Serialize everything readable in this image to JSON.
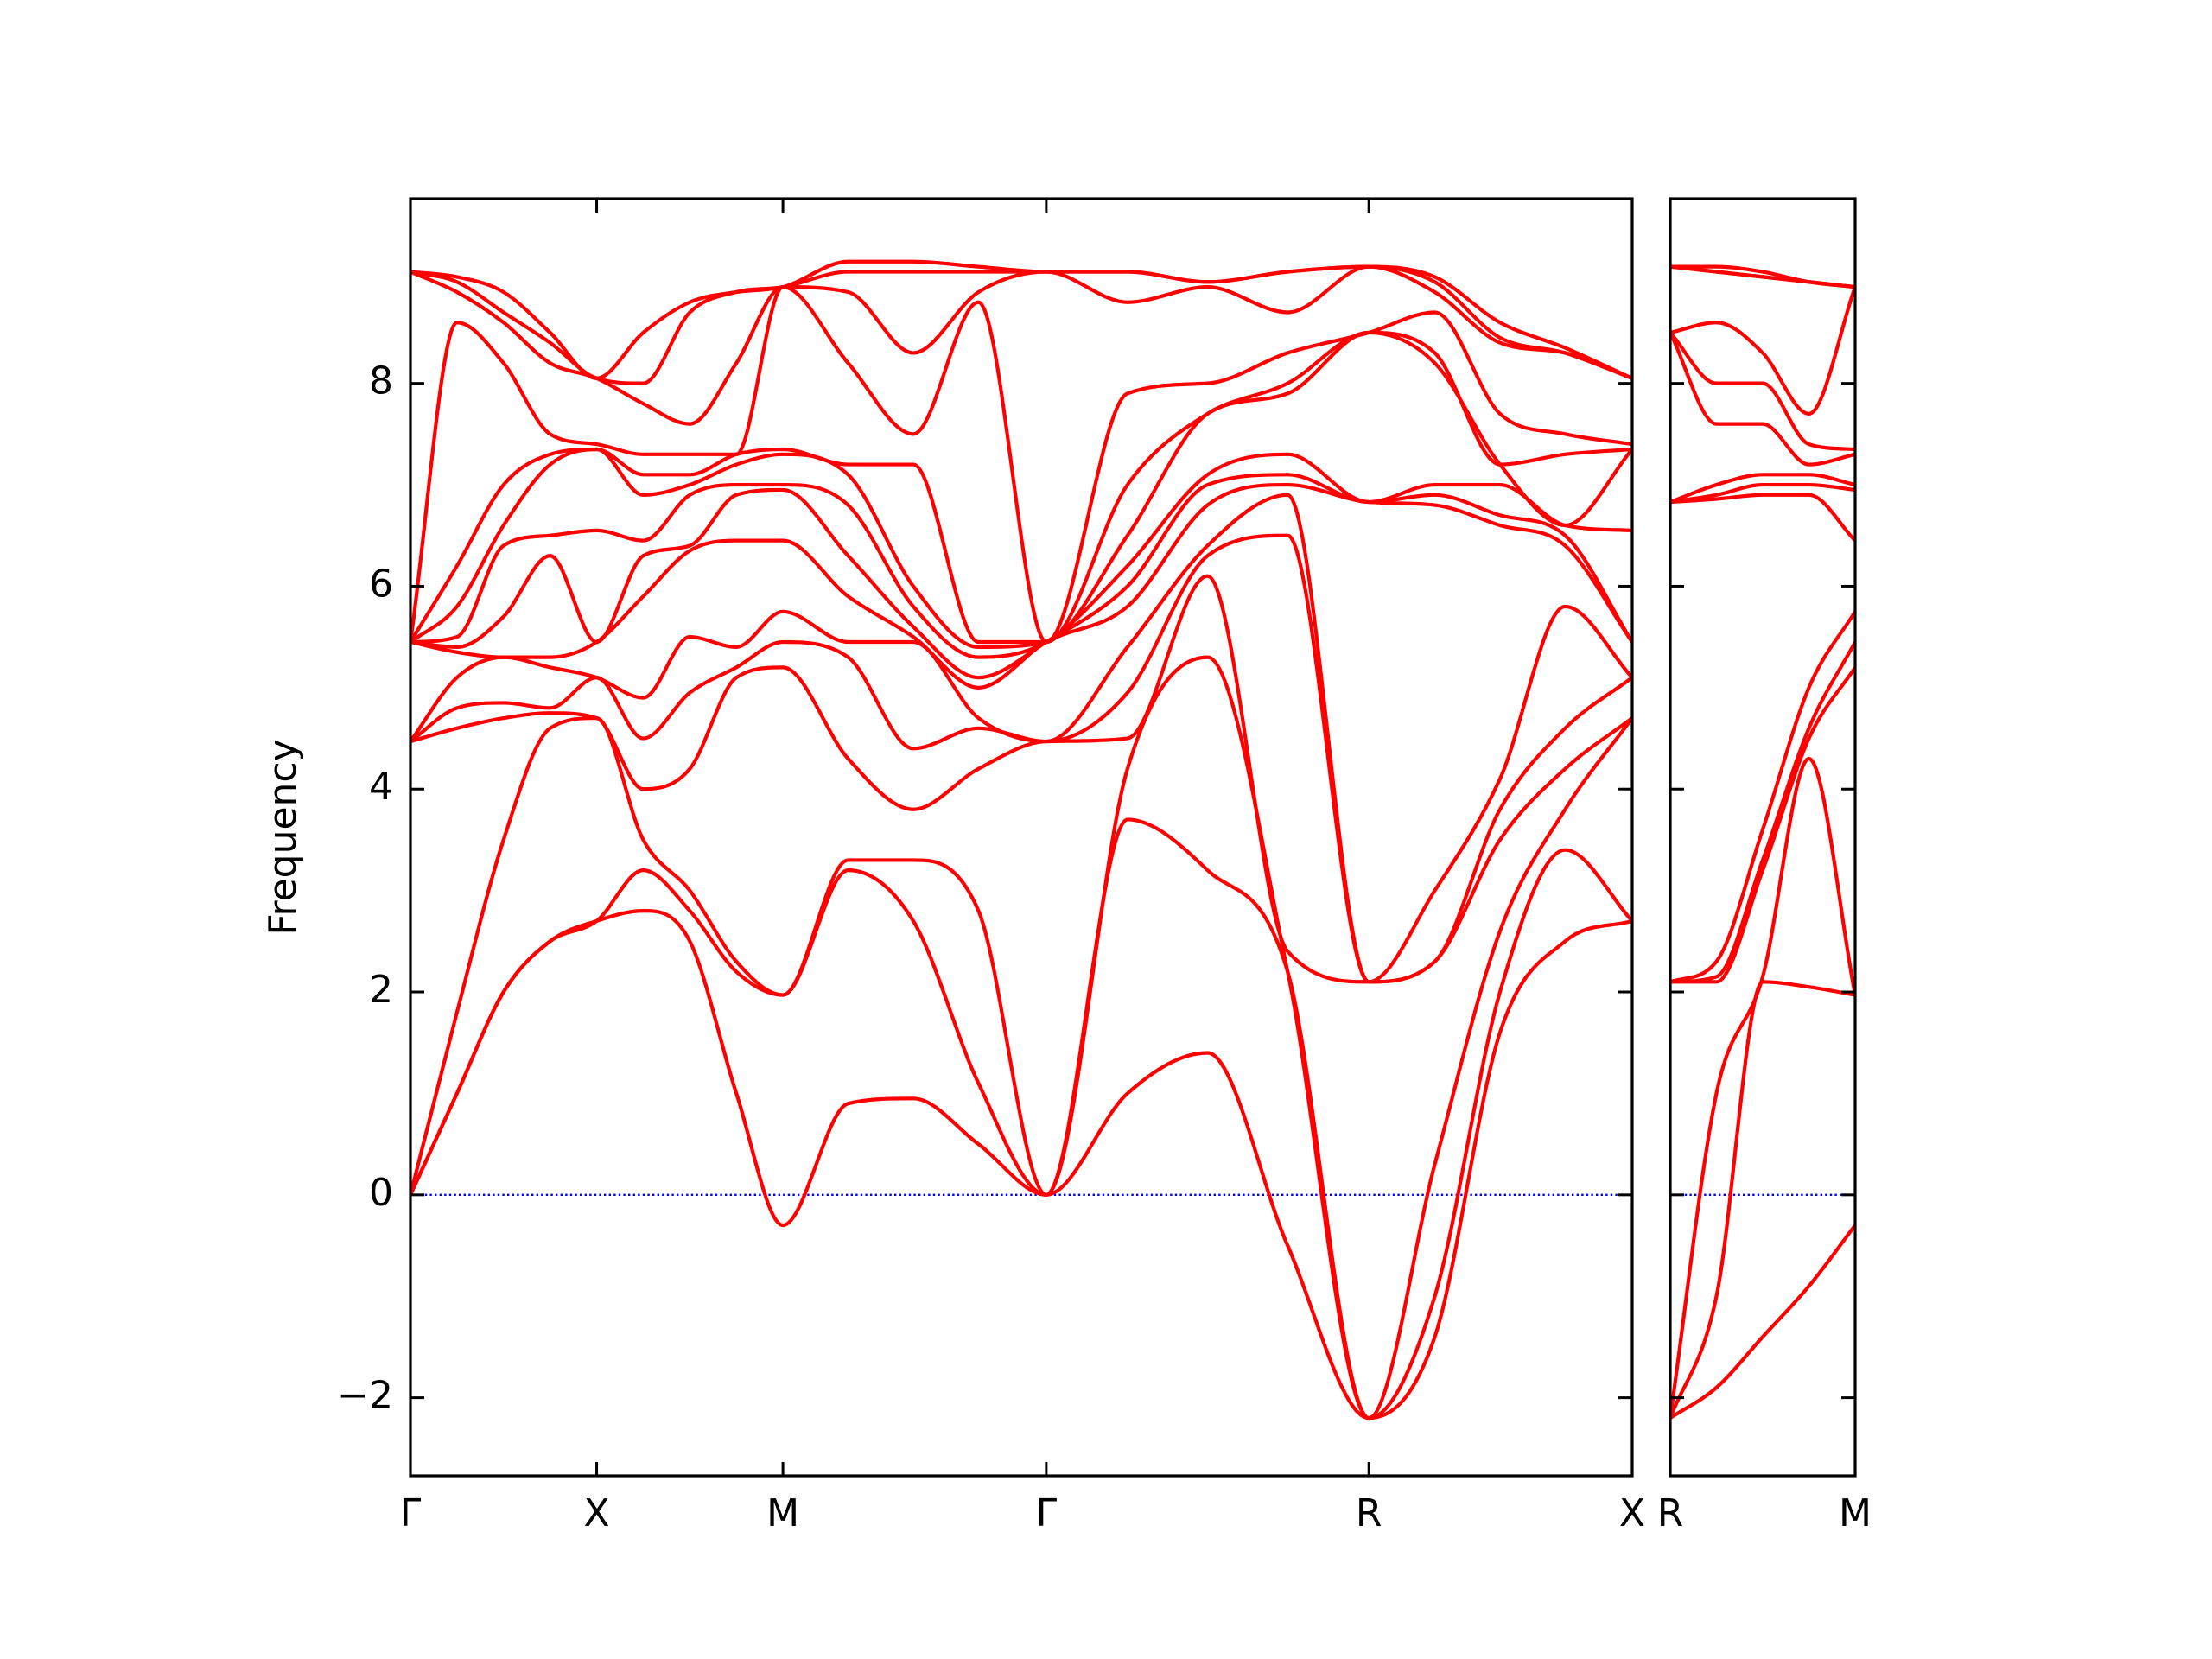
{
  "chart_data": [
    {
      "type": "line",
      "ylabel": "Frequency",
      "x": [
        0,
        0.25,
        0.5,
        0.75,
        1,
        1.25,
        1.5,
        1.75,
        2,
        2.35,
        2.7,
        3.05,
        3.414,
        3.85,
        4.28,
        4.71,
        5.146,
        5.5,
        5.85,
        6.2,
        6.56
      ],
      "xlim": [
        0,
        6.56
      ],
      "xticks": [
        {
          "value": 0,
          "label": "Γ"
        },
        {
          "value": 1,
          "label": "X"
        },
        {
          "value": 2,
          "label": "M"
        },
        {
          "value": 3.414,
          "label": "Γ"
        },
        {
          "value": 5.146,
          "label": "R"
        },
        {
          "value": 6.56,
          "label": "X"
        }
      ],
      "ylim": [
        -2.77,
        9.82
      ],
      "yticks": [
        {
          "value": -2,
          "label": "−2"
        },
        0,
        2,
        4,
        6,
        8
      ],
      "ytick_labels": true,
      "hline": {
        "y": 0,
        "color": "#0000ff",
        "style": "dotted"
      },
      "series": [
        {
          "color": "#ff0000",
          "values": [
            0,
            1.0,
            2.0,
            2.5,
            2.7,
            2.8,
            2.5,
            1.0,
            -0.3,
            0.9,
            0.95,
            0.5,
            0,
            1.0,
            1.4,
            -0.5,
            -2.2,
            -1.4,
            1.6,
            2.5,
            2.7
          ]
        },
        {
          "color": "#ff0000",
          "values": [
            0,
            1.0,
            2.0,
            2.5,
            2.7,
            3.2,
            2.8,
            2.2,
            1.97,
            3.2,
            2.7,
            1.1,
            0,
            3.7,
            3.2,
            2.2,
            -2.2,
            -1.0,
            2.0,
            3.4,
            2.7
          ]
        },
        {
          "color": "#ff0000",
          "values": [
            0,
            1.8,
            3.5,
            4.6,
            4.7,
            3.5,
            3.0,
            2.3,
            1.97,
            3.3,
            3.3,
            2.8,
            0,
            4.2,
            5.3,
            2.2,
            -2.2,
            0.3,
            2.6,
            3.8,
            4.7
          ]
        },
        {
          "color": "#ff0000",
          "values": [
            4.47,
            4.6,
            4.7,
            4.75,
            4.7,
            4.0,
            4.2,
            5.1,
            5.2,
            4.3,
            3.8,
            4.2,
            4.47,
            4.5,
            6.1,
            2.4,
            2.1,
            2.3,
            3.5,
            4.2,
            4.7
          ]
        },
        {
          "color": "#ff0000",
          "values": [
            4.47,
            4.8,
            4.85,
            4.8,
            5.1,
            4.5,
            4.95,
            5.2,
            5.45,
            5.3,
            4.4,
            4.6,
            4.47,
            4.95,
            6.3,
            6.5,
            2.1,
            2.3,
            3.8,
            4.6,
            5.1
          ]
        },
        {
          "color": "#ff0000",
          "values": [
            4.47,
            5.1,
            5.3,
            5.2,
            5.1,
            4.9,
            5.5,
            5.4,
            5.75,
            5.45,
            5.45,
            4.7,
            4.47,
            5.4,
            6.4,
            6.9,
            2.1,
            3.0,
            4.1,
            5.8,
            5.1
          ]
        },
        {
          "color": "#ff0000",
          "values": [
            5.45,
            5.35,
            5.3,
            5.3,
            5.45,
            5.9,
            6.35,
            6.45,
            6.45,
            5.9,
            5.5,
            5.0,
            5.45,
            5.8,
            6.8,
            7.0,
            6.83,
            6.8,
            6.6,
            6.4,
            5.45
          ]
        },
        {
          "color": "#ff0000",
          "values": [
            5.45,
            5.4,
            5.7,
            6.3,
            5.45,
            6.3,
            6.4,
            6.9,
            6.95,
            6.3,
            5.6,
            5.1,
            5.45,
            6.0,
            7.0,
            7.1,
            6.83,
            6.9,
            6.7,
            6.5,
            5.45
          ]
        },
        {
          "color": "#ff0000",
          "values": [
            5.45,
            5.5,
            6.4,
            6.5,
            6.55,
            6.45,
            6.9,
            7.0,
            7.0,
            6.8,
            5.8,
            5.3,
            5.45,
            6.2,
            7.1,
            7.3,
            6.83,
            7.0,
            7.0,
            6.6,
            6.55
          ]
        },
        {
          "color": "#ff0000",
          "values": [
            5.45,
            5.8,
            6.6,
            7.2,
            7.35,
            6.9,
            7.0,
            7.2,
            7.3,
            7.1,
            6.0,
            5.4,
            5.45,
            6.5,
            7.7,
            7.9,
            8.5,
            8.2,
            7.2,
            6.6,
            7.35
          ]
        },
        {
          "color": "#ff0000",
          "values": [
            5.45,
            6.2,
            7.0,
            7.3,
            7.35,
            7.1,
            7.1,
            7.3,
            7.35,
            7.2,
            7.2,
            5.45,
            5.45,
            7.0,
            7.7,
            8.0,
            8.5,
            8.3,
            7.2,
            7.3,
            7.35
          ]
        },
        {
          "color": "#ff0000",
          "values": [
            5.45,
            8.6,
            8.2,
            7.5,
            7.4,
            7.3,
            7.3,
            7.3,
            8.95,
            8.2,
            7.5,
            8.8,
            5.45,
            7.9,
            8.0,
            8.3,
            8.5,
            8.7,
            7.7,
            7.5,
            7.4
          ]
        },
        {
          "color": "#ff0000",
          "values": [
            9.1,
            8.9,
            8.6,
            8.2,
            8.05,
            7.8,
            7.6,
            8.2,
            8.95,
            8.9,
            8.3,
            8.9,
            9.1,
            8.8,
            8.95,
            8.7,
            9.15,
            8.9,
            8.4,
            8.3,
            8.05
          ]
        },
        {
          "color": "#ff0000",
          "values": [
            9.1,
            9.0,
            8.7,
            8.4,
            8.05,
            8.0,
            8.7,
            8.9,
            8.95,
            9.1,
            9.1,
            9.1,
            9.1,
            9.1,
            9.0,
            9.1,
            9.15,
            9.0,
            8.45,
            8.3,
            8.05
          ]
        },
        {
          "color": "#ff0000",
          "values": [
            9.1,
            9.05,
            8.9,
            8.5,
            8.05,
            8.5,
            8.8,
            8.9,
            8.95,
            9.2,
            9.2,
            9.15,
            9.1,
            9.1,
            9.0,
            9.1,
            9.15,
            9.05,
            8.6,
            8.35,
            8.05
          ]
        }
      ]
    },
    {
      "type": "line",
      "x": [
        0,
        0.25,
        0.5,
        0.75,
        1
      ],
      "xlim": [
        0,
        1
      ],
      "xticks": [
        {
          "value": 0,
          "label": "R"
        },
        {
          "value": 1,
          "label": "M"
        }
      ],
      "ylim": [
        -2.77,
        9.82
      ],
      "yticks": [
        -2,
        0,
        2,
        4,
        6,
        8
      ],
      "ytick_labels": false,
      "hline": {
        "y": 0,
        "color": "#0000ff",
        "style": "dotted"
      },
      "series": [
        {
          "color": "#ff0000",
          "values": [
            -2.2,
            -1.9,
            -1.4,
            -0.9,
            -0.3
          ]
        },
        {
          "color": "#ff0000",
          "values": [
            -2.2,
            -1.0,
            2.1,
            2.05,
            1.97
          ]
        },
        {
          "color": "#ff0000",
          "values": [
            -2.2,
            1.0,
            2.15,
            4.3,
            1.97
          ]
        },
        {
          "color": "#ff0000",
          "values": [
            2.1,
            2.1,
            3.2,
            4.5,
            5.2
          ]
        },
        {
          "color": "#ff0000",
          "values": [
            2.1,
            2.15,
            3.3,
            4.6,
            5.45
          ]
        },
        {
          "color": "#ff0000",
          "values": [
            2.1,
            2.3,
            3.6,
            5.0,
            5.75
          ]
        },
        {
          "color": "#ff0000",
          "values": [
            6.83,
            6.86,
            6.9,
            6.9,
            6.45
          ]
        },
        {
          "color": "#ff0000",
          "values": [
            6.83,
            6.9,
            7.0,
            7.0,
            6.95
          ]
        },
        {
          "color": "#ff0000",
          "values": [
            6.83,
            7.0,
            7.1,
            7.1,
            7.0
          ]
        },
        {
          "color": "#ff0000",
          "values": [
            8.5,
            7.6,
            7.6,
            7.2,
            7.3
          ]
        },
        {
          "color": "#ff0000",
          "values": [
            8.5,
            8.0,
            8.0,
            7.4,
            7.35
          ]
        },
        {
          "color": "#ff0000",
          "values": [
            8.5,
            8.6,
            8.3,
            7.7,
            8.95
          ]
        },
        {
          "color": "#ff0000",
          "values": [
            9.15,
            9.1,
            9.05,
            9.0,
            8.95
          ]
        },
        {
          "color": "#ff0000",
          "values": [
            9.15,
            9.1,
            9.05,
            9.0,
            8.95
          ]
        },
        {
          "color": "#ff0000",
          "values": [
            9.15,
            9.15,
            9.1,
            9.0,
            8.95
          ]
        }
      ]
    }
  ]
}
